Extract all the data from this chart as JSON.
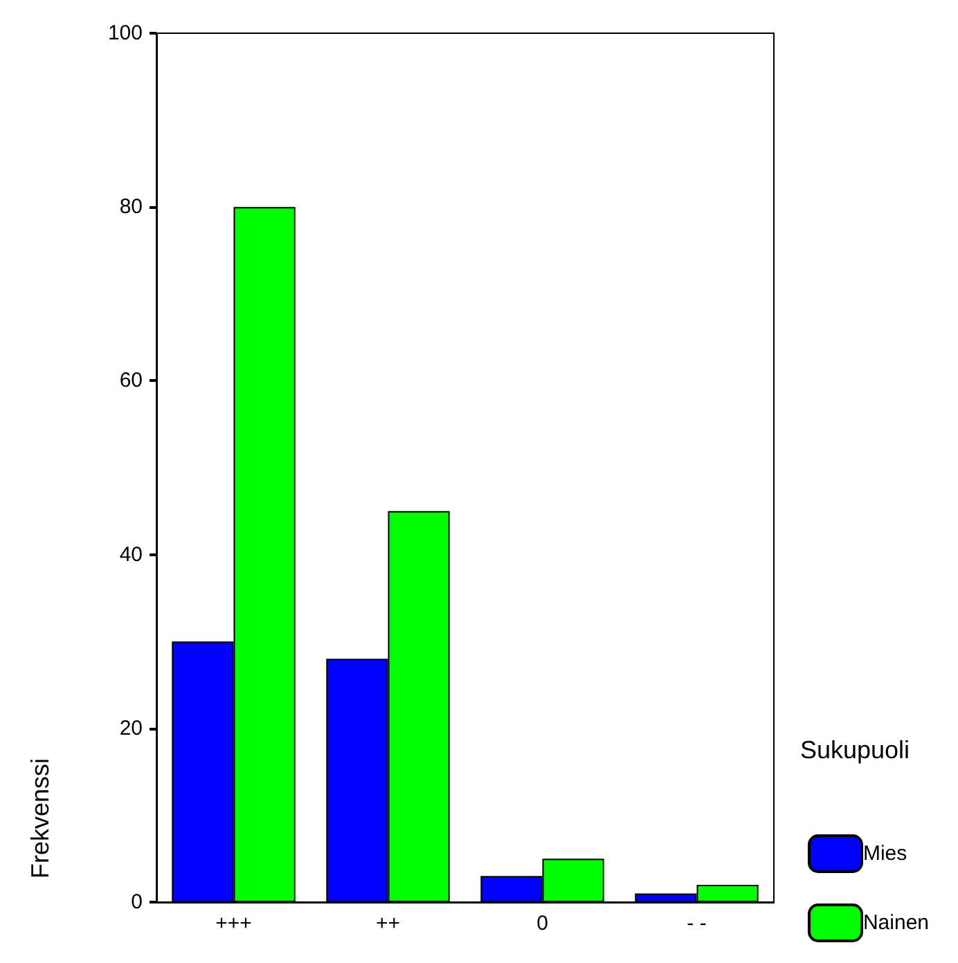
{
  "chart_data": {
    "type": "bar",
    "ylabel": "Frekvenssi",
    "legend_title": "Sukupuoli",
    "categories": [
      "+++",
      "++",
      "0",
      "- -"
    ],
    "series": [
      {
        "name": "Mies",
        "color": "#0000ff",
        "values": [
          30,
          28,
          3,
          1
        ]
      },
      {
        "name": "Nainen",
        "color": "#00ff00",
        "values": [
          80,
          45,
          5,
          2
        ]
      }
    ],
    "ylim": [
      0,
      100
    ],
    "yticks": [
      0,
      20,
      40,
      60,
      80,
      100
    ],
    "grid": false,
    "legend": "right"
  }
}
